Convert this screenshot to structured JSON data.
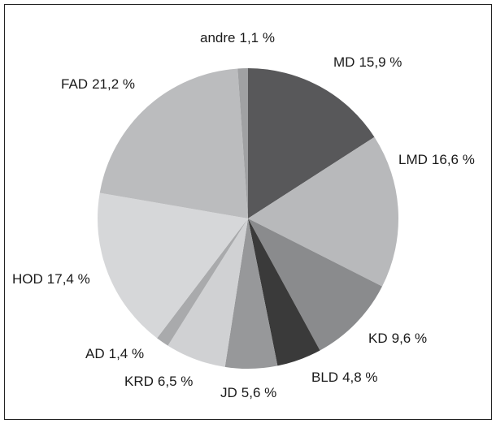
{
  "chart_data": {
    "type": "pie",
    "categories": [
      "MD",
      "LMD",
      "KD",
      "BLD",
      "JD",
      "KRD",
      "AD",
      "HOD",
      "FAD",
      "andre"
    ],
    "values": [
      15.9,
      16.6,
      9.6,
      4.8,
      5.6,
      6.5,
      1.4,
      17.4,
      21.2,
      1.1
    ],
    "value_labels": [
      "15,9 %",
      "16,6 %",
      "9,6 %",
      "4,8 %",
      "5,6 %",
      "6,5 %",
      "1,4 %",
      "17,4 %",
      "21,2 %",
      "1,1 %"
    ],
    "colors": [
      "#58585a",
      "#b8b9bb",
      "#8a8b8d",
      "#3a3a3a",
      "#97989a",
      "#d0d1d3",
      "#a9aaac",
      "#d6d7d9",
      "#bbbcbe",
      "#a0a1a3"
    ]
  }
}
